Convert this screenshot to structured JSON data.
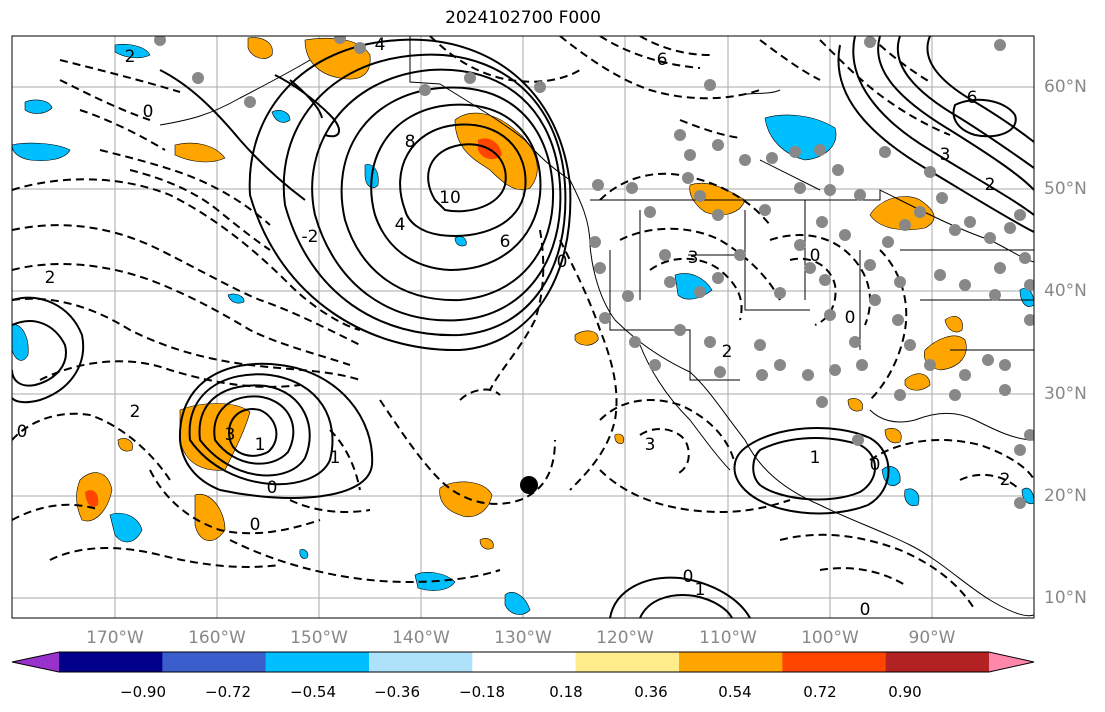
{
  "title": "2024102700 F000",
  "map": {
    "lon_labels": [
      "170°W",
      "160°W",
      "150°W",
      "140°W",
      "130°W",
      "120°W",
      "110°W",
      "100°W",
      "90°W"
    ],
    "lat_labels": [
      "60°N",
      "50°N",
      "40°N",
      "30°N",
      "20°N",
      "10°N"
    ],
    "contour_labels": [
      "4",
      "6",
      "2",
      "0",
      "8",
      "10",
      "4",
      "6",
      "0",
      "3",
      "3",
      "0",
      "0",
      "2",
      "2",
      "0",
      "3",
      "1",
      "1",
      "0",
      "0",
      "2",
      "1",
      "0",
      "1",
      "6",
      "3",
      "2",
      "0",
      "2",
      "0",
      "-2"
    ]
  },
  "colorbar": {
    "ticks": [
      "−0.90",
      "−0.72",
      "−0.54",
      "−0.36",
      "−0.18",
      "0.18",
      "0.36",
      "0.54",
      "0.72",
      "0.90"
    ],
    "colors": [
      "#9932cc",
      "#00008b",
      "#3a5fcd",
      "#00bfff",
      "#aee2fb",
      "#ffffff",
      "#ffec8b",
      "#ffa500",
      "#ff4500",
      "#b22222",
      "#ff88aa"
    ]
  },
  "colors": {
    "positive_fill": "#ffa500",
    "strong_positive_fill": "#ff4500",
    "negative_fill": "#00bfff",
    "grid": "#aaaaaa",
    "station_dot": "#888888"
  }
}
